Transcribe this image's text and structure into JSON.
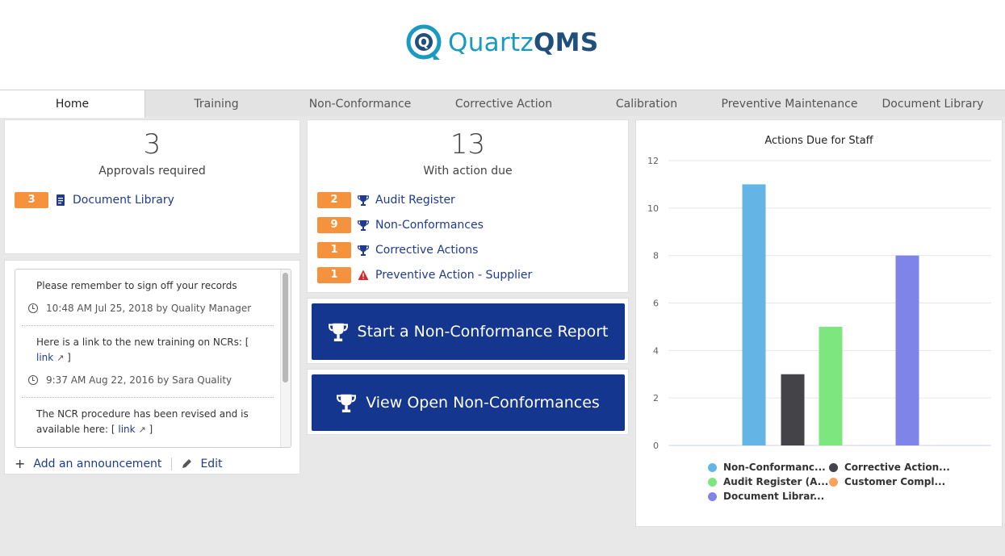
{
  "brand": {
    "name_part1": "Quartz",
    "name_part2": "QMS",
    "primary": "#1a9ac1",
    "secondary": "#1f4f7a"
  },
  "tabs": [
    {
      "label": "Home",
      "active": true
    },
    {
      "label": "Training"
    },
    {
      "label": "Non-Conformance"
    },
    {
      "label": "Corrective Action"
    },
    {
      "label": "Calibration"
    },
    {
      "label": "Preventive Maintenance"
    },
    {
      "label": "Document Library"
    }
  ],
  "approvals": {
    "count": "3",
    "label": "Approvals required",
    "items": [
      {
        "count": "3",
        "label": "Document Library",
        "icon": "document-icon"
      }
    ]
  },
  "actions_due": {
    "count": "13",
    "label": "With action due",
    "items": [
      {
        "count": "2",
        "label": "Audit Register",
        "icon": "trophy-icon"
      },
      {
        "count": "9",
        "label": "Non-Conformances",
        "icon": "trophy-icon"
      },
      {
        "count": "1",
        "label": "Corrective Actions",
        "icon": "trophy-icon"
      },
      {
        "count": "1",
        "label": "Preventive Action - Supplier",
        "icon": "warning-icon"
      }
    ]
  },
  "announcements": {
    "items": [
      {
        "text": "Please remember to sign off your records",
        "meta": "10:48 AM Jul 25, 2018 by Quality Manager"
      },
      {
        "text": "Here is a link to the new training on NCRs: [",
        "link": "link",
        "text_after": " ]",
        "meta": "9:37 AM Aug 22, 2016 by Sara Quality"
      },
      {
        "text": "The NCR procedure has been revised and is",
        "text2": "available here: [",
        "link": "link",
        "text_after": " ]"
      }
    ],
    "add_label": "Add an announcement",
    "edit_label": "Edit"
  },
  "buttons": {
    "start_ncr": "Start a Non-Conformance Report",
    "view_ncr": "View Open Non-Conformances"
  },
  "chart_data": {
    "type": "bar",
    "title": "Actions Due for Staff",
    "ylim": [
      0,
      12
    ],
    "yticks": [
      "0",
      "2",
      "4",
      "6",
      "8",
      "10",
      "12"
    ],
    "grid": true,
    "legend_position": "bottom",
    "series": [
      {
        "name": "Non-Conformanc...",
        "value": 11,
        "color": "#64b5e6"
      },
      {
        "name": "Corrective Action...",
        "value": 3,
        "color": "#434348"
      },
      {
        "name": "Audit Register (A...",
        "value": 5,
        "color": "#7ee67e"
      },
      {
        "name": "Customer Compl...",
        "value": 0,
        "color": "#f7a35c"
      },
      {
        "name": "Document Librar...",
        "value": 8,
        "color": "#7f85e8"
      }
    ]
  }
}
